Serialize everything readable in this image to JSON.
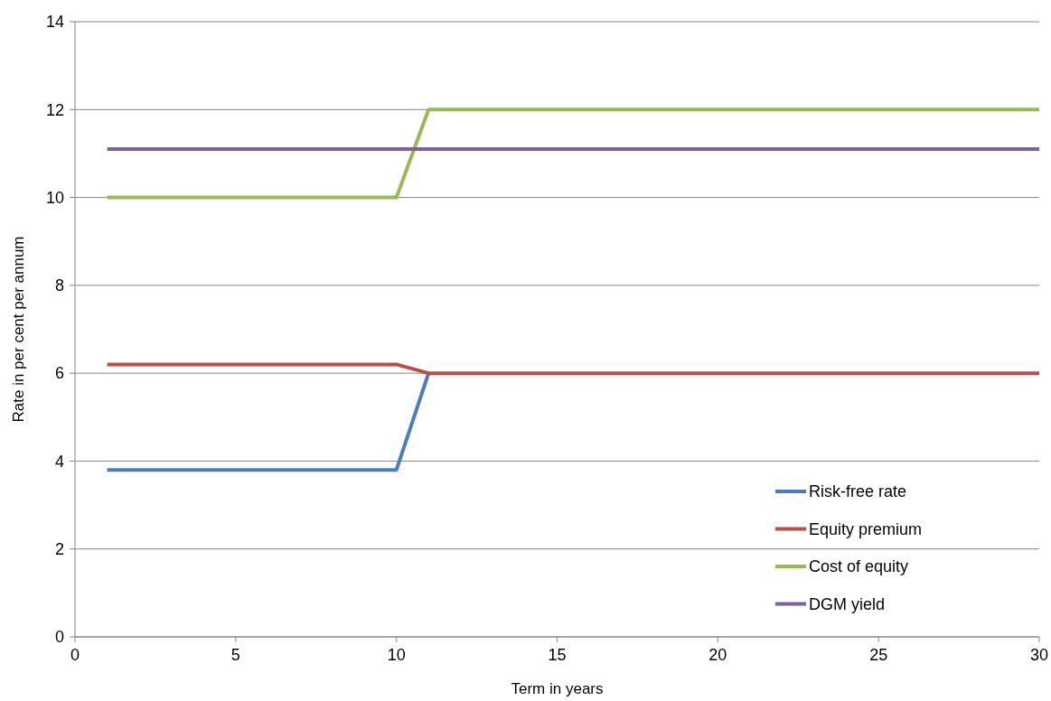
{
  "chart_data": {
    "type": "line",
    "xlabel": "Term in years",
    "ylabel": "Rate in per cent per annum",
    "xlim": [
      0,
      30
    ],
    "xticks": [
      0,
      5,
      10,
      15,
      20,
      25,
      30
    ],
    "ylim": [
      0,
      14
    ],
    "yticks": [
      0,
      2,
      4,
      6,
      8,
      10,
      12,
      14
    ],
    "grid": "y",
    "legend": "bottom right",
    "marker": "none",
    "line_style": "solid",
    "series": [
      {
        "name": "Risk-free rate",
        "color": "#4a7ebb",
        "x": [
          1,
          10,
          11
        ],
        "values": [
          3.8,
          3.8,
          6
        ]
      },
      {
        "name": "Equity premium",
        "color": "#be4b48",
        "x": [
          1,
          10,
          11,
          30
        ],
        "values": [
          6.2,
          6.2,
          6,
          6
        ]
      },
      {
        "name": "Cost of equity",
        "color": "#98b954",
        "x": [
          1,
          10,
          11,
          30
        ],
        "values": [
          10,
          10,
          12,
          12
        ]
      },
      {
        "name": "DGM yield",
        "color": "#7d60a0",
        "x": [
          1,
          30
        ],
        "values": [
          11.1,
          11.1
        ]
      }
    ]
  }
}
